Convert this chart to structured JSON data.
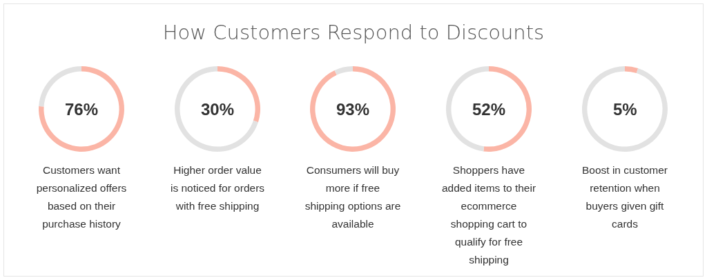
{
  "chart_data": [
    {
      "type": "other",
      "title": "How Customers Respond to Discounts"
    },
    {
      "type": "donut",
      "categories": [
        null,
        null
      ],
      "values": [
        76,
        24
      ],
      "colors": [
        "#fbb5a6",
        "#e2e2e2"
      ],
      "title": "76%",
      "annotations": [
        "Customers want personalized offers based on their purchase history"
      ]
    },
    {
      "type": "donut",
      "categories": [
        null,
        null
      ],
      "values": [
        30,
        70
      ],
      "colors": [
        "#fbb5a6",
        "#e2e2e2"
      ],
      "title": "30%",
      "annotations": [
        "Higher order value is noticed for orders with free shipping"
      ]
    },
    {
      "type": "donut",
      "categories": [
        null,
        null
      ],
      "values": [
        93,
        7
      ],
      "colors": [
        "#fbb5a6",
        "#e2e2e2"
      ],
      "title": "93%",
      "annotations": [
        "Consumers will buy more if free shipping options are available"
      ]
    },
    {
      "type": "donut",
      "categories": [
        null,
        null
      ],
      "values": [
        52,
        48
      ],
      "colors": [
        "#fbb5a6",
        "#e2e2e2"
      ],
      "title": "52%",
      "annotations": [
        "Shoppers have added items to their ecommerce shopping cart to qualify for free shipping"
      ]
    },
    {
      "type": "donut",
      "categories": [
        null,
        null
      ],
      "values": [
        5,
        95
      ],
      "colors": [
        "#fbb5a6",
        "#e2e2e2"
      ],
      "title": "5%",
      "annotations": [
        "Boost in customer retention when buyers given gift cards"
      ]
    }
  ]
}
